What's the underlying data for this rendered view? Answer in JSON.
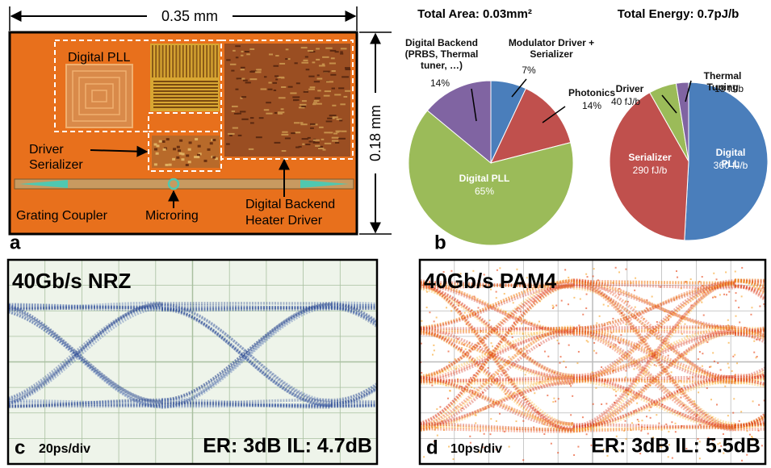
{
  "panel_a": {
    "label": "a",
    "width_dimension": "0.35 mm",
    "height_dimension": "0.18 mm",
    "callouts": [
      {
        "lines": [
          "Digital PLL"
        ]
      },
      {
        "lines": [
          "Driver",
          "Serializer"
        ]
      },
      {
        "lines": [
          "Digital Backend",
          "Heater Driver"
        ]
      },
      {
        "lines": [
          "Grating Coupler"
        ]
      },
      {
        "lines": [
          "Microring"
        ]
      }
    ]
  },
  "panel_b": {
    "label": "b"
  },
  "chart_data": [
    {
      "type": "pie",
      "title": "Total Area: 0.03mm²",
      "categories": [
        "Modulator Driver + Serializer",
        "Photonics",
        "Digital PLL",
        "Digital Backend (PRBS, Thermal tuner, …)"
      ],
      "values": [
        7,
        14,
        65,
        14
      ],
      "value_labels": [
        "7%",
        "14%",
        "65%",
        "14%"
      ],
      "colors": [
        "#4a7ebb",
        "#c0504d",
        "#9bbb59",
        "#8064a2"
      ]
    },
    {
      "type": "pie",
      "title": "Total Energy: 0.7pJ/b",
      "categories": [
        "Digital PLL",
        "Serializer",
        "Driver",
        "Thermal Tuning"
      ],
      "values": [
        360,
        290,
        40,
        18
      ],
      "value_labels": [
        "360 fJ/b",
        "290 fJ/b",
        "40 fJ/b",
        "18 fJ/b"
      ],
      "colors": [
        "#4a7ebb",
        "#c0504d",
        "#9bbb59",
        "#8064a2"
      ]
    }
  ],
  "panel_c": {
    "label": "c",
    "title": "40Gb/s NRZ",
    "timescale": "20ps/div",
    "metrics": "ER: 3dB IL: 4.7dB"
  },
  "panel_d": {
    "label": "d",
    "title": "40Gb/s PAM4",
    "timescale": "10ps/div",
    "metrics": "ER: 3dB IL: 5.5dB"
  }
}
